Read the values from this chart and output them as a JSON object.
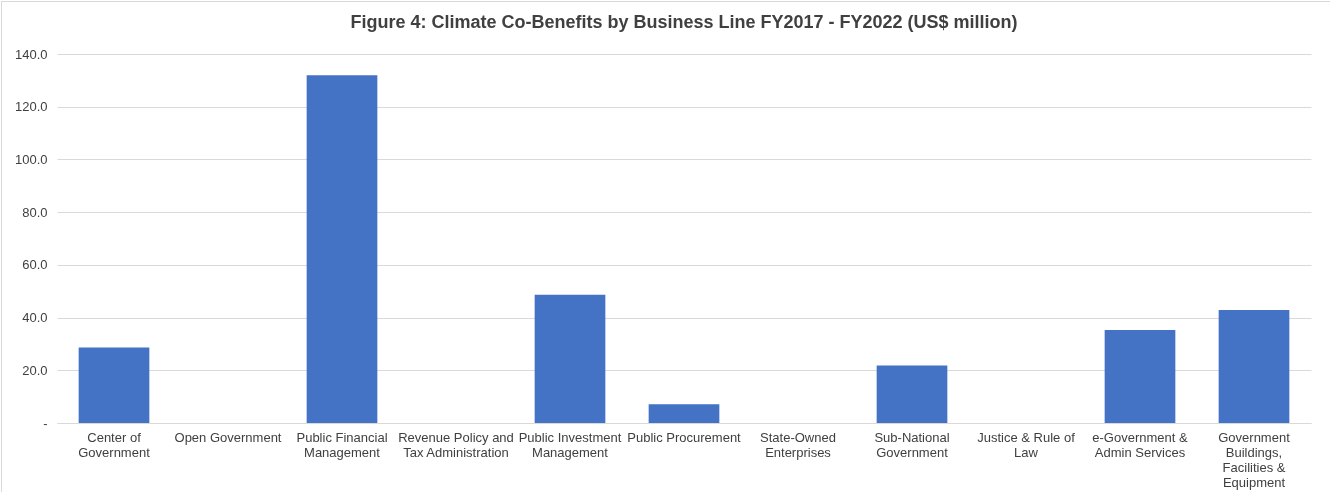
{
  "chart_data": {
    "type": "bar",
    "title": "Figure 4: Climate Co-Benefits by Business Line FY2017 - FY2022 (US$ million)",
    "categories": [
      "Center of Government",
      "Open Government",
      "Public Financial Management",
      "Revenue Policy and Tax Administration",
      "Public Investment Management",
      "Public Procurement",
      "State-Owned Enterprises",
      "Sub-National Government",
      "Justice & Rule of Law",
      "e-Government & Admin Services",
      "Government Buildings, Facilities & Equipment"
    ],
    "values": [
      28.6,
      0,
      131.9,
      0,
      48.7,
      7.1,
      0,
      21.8,
      0,
      35.3,
      42.9
    ],
    "color": "#4472c4",
    "ylim": [
      0,
      140
    ],
    "yticks": [
      {
        "value": 0,
        "label": "-"
      },
      {
        "value": 20,
        "label": "20.0"
      },
      {
        "value": 40,
        "label": "40.0"
      },
      {
        "value": 60,
        "label": "60.0"
      },
      {
        "value": 80,
        "label": "80.0"
      },
      {
        "value": 100,
        "label": "100.0"
      },
      {
        "value": 120,
        "label": "120.0"
      },
      {
        "value": 140,
        "label": "140.0"
      }
    ],
    "grid": "y"
  }
}
